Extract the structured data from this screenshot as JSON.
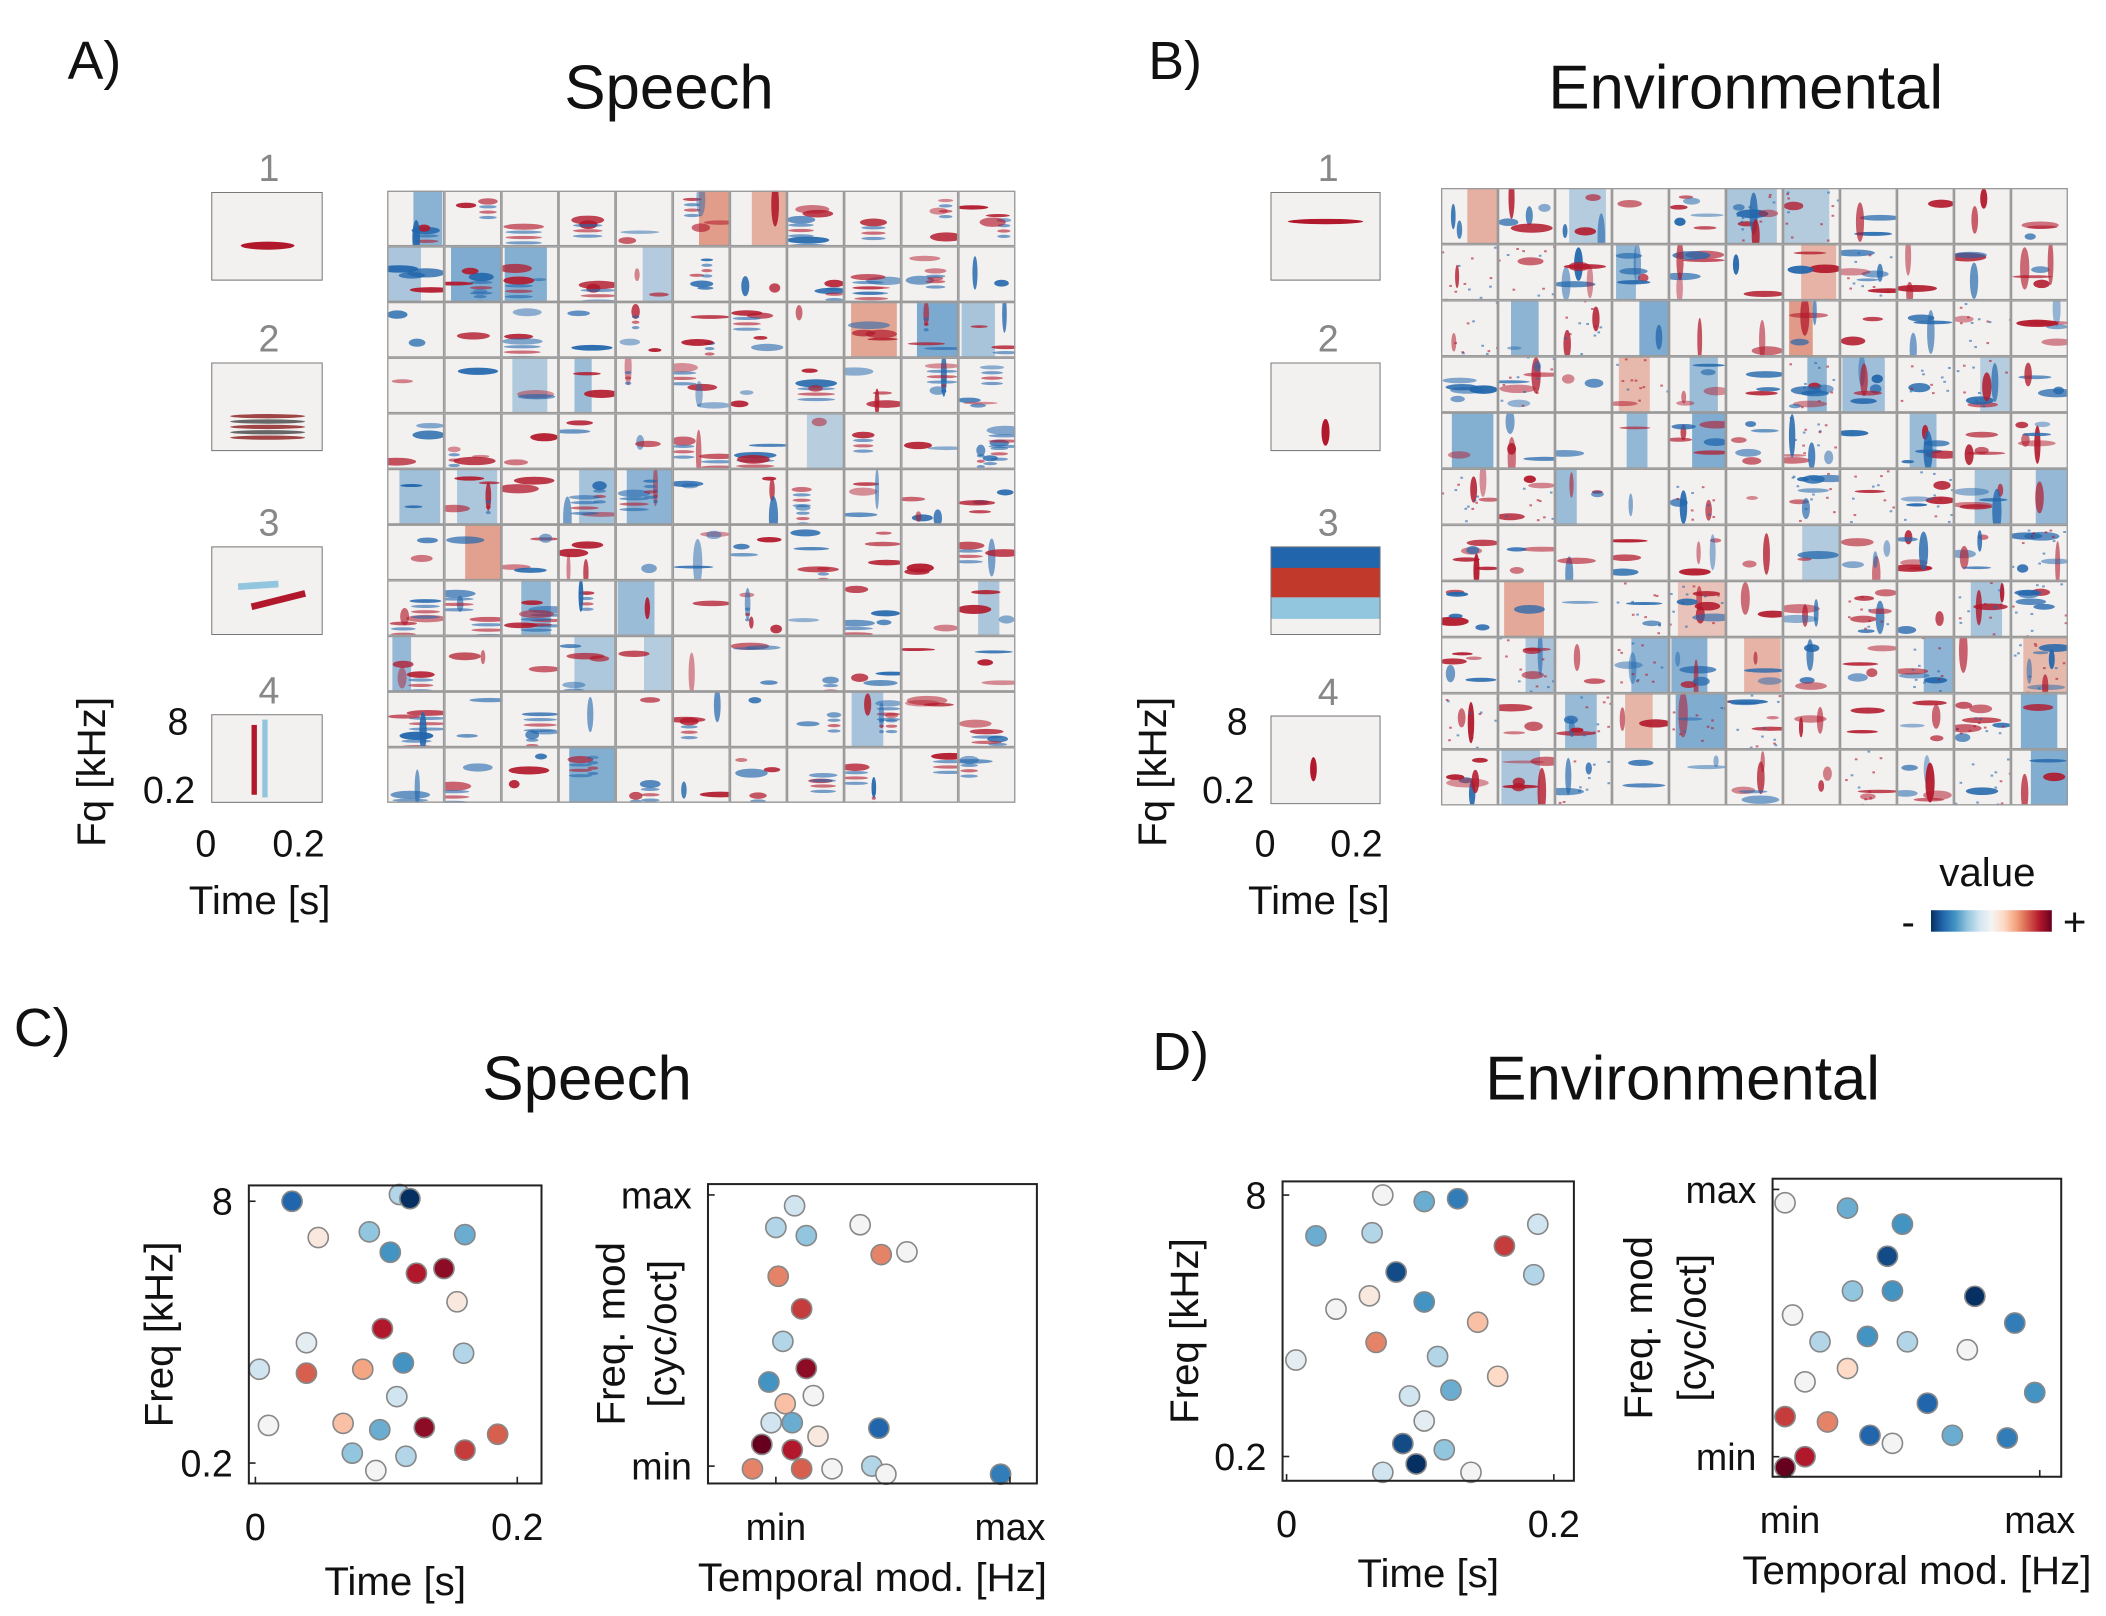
{
  "panels": [
    {
      "label": "A)",
      "title": "Speech"
    },
    {
      "label": "B)",
      "title": "Environmental"
    },
    {
      "label": "C)",
      "title": "Speech"
    },
    {
      "label": "D)",
      "title": "Environmental"
    }
  ],
  "filters": [
    {
      "examples": [
        "1",
        "2",
        "3",
        "4"
      ],
      "ylabel": "Fq [kHz]",
      "xlabel": "Time [s]",
      "yticks": [
        8,
        0.2
      ],
      "xticks": [
        0,
        0.2
      ]
    },
    {
      "examples": [
        "1",
        "2",
        "3",
        "4"
      ],
      "ylabel": "Fq [kHz]",
      "xlabel": "Time [s]",
      "yticks": [
        8,
        0.2
      ],
      "xticks": [
        0,
        0.2
      ]
    }
  ],
  "colorbar": {
    "label": "value",
    "min_label": "-",
    "max_label": "+",
    "clim": [
      -1,
      1
    ],
    "colormap": [
      "#053061",
      "#2166ac",
      "#4393c3",
      "#92c5de",
      "#d1e5f0",
      "#f4f4f4",
      "#fddbc7",
      "#f4a582",
      "#d6604d",
      "#b2182b",
      "#67001f"
    ]
  },
  "chart_data": [
    {
      "type": "scatter",
      "xlabel": "Time [s]",
      "ylabel": [
        "Freq [kHz]"
      ],
      "ylog": true,
      "xlim": [
        -0.005,
        0.2185
      ],
      "ylim": [
        0.15,
        10
      ],
      "xticks": [
        0,
        0.2
      ],
      "yticks": [
        8,
        0.2
      ],
      "x": [
        0.028,
        0.11,
        0.118,
        0.144,
        0.16,
        0.048,
        0.087,
        0.103,
        0.154,
        0.159,
        0.123,
        0.039,
        0.003,
        0.039,
        0.082,
        0.113,
        0.01,
        0.067,
        0.095,
        0.129,
        0.185,
        0.16,
        0.074,
        0.092,
        0.115,
        0.097,
        0.108
      ],
      "y": [
        8.0,
        8.8,
        8.3,
        3.1,
        5.0,
        4.8,
        5.2,
        3.9,
        1.94,
        0.94,
        2.9,
        1.09,
        0.75,
        0.71,
        0.75,
        0.82,
        0.34,
        0.35,
        0.32,
        0.33,
        0.3,
        0.24,
        0.23,
        0.18,
        0.22,
        1.33,
        0.51
      ],
      "c": [
        -0.8,
        -0.3,
        -1.0,
        0.9,
        -0.5,
        0.1,
        -0.4,
        -0.6,
        0.1,
        -0.3,
        0.8,
        -0.1,
        -0.2,
        0.6,
        0.4,
        -0.6,
        0.0,
        0.3,
        -0.5,
        0.9,
        0.6,
        0.7,
        -0.4,
        0.0,
        -0.3,
        0.8,
        -0.2
      ]
    },
    {
      "type": "scatter",
      "xlabel": "Temporal mod. [Hz]",
      "ylabel": [
        "Freq. mod",
        "[cyc/oct]"
      ],
      "ylog": false,
      "xlim": [
        -0.29,
        1.115
      ],
      "ylim": [
        -0.064,
        1.04
      ],
      "xticks": [
        {
          "value": 0,
          "label": "min"
        },
        {
          "value": 1,
          "label": "max"
        }
      ],
      "yticks": [
        {
          "value": 1,
          "label": "max"
        },
        {
          "value": 0,
          "label": "min"
        }
      ],
      "x": [
        0.08,
        0.0,
        0.36,
        0.45,
        0.56,
        0.13,
        0.01,
        0.11,
        0.03,
        0.13,
        -0.03,
        0.04,
        0.44,
        -0.06,
        0.07,
        0.18,
        0.41,
        0.47,
        0.96,
        0.11,
        0.24,
        -0.1,
        -0.02,
        0.16,
        0.07
      ],
      "y": [
        0.96,
        0.88,
        0.89,
        0.78,
        0.79,
        0.85,
        0.7,
        0.58,
        0.46,
        0.36,
        0.31,
        0.23,
        0.14,
        0.08,
        0.06,
        0.11,
        0.0,
        -0.03,
        -0.03,
        -0.01,
        -0.01,
        -0.01,
        0.16,
        0.26,
        0.16
      ],
      "c": [
        -0.2,
        -0.3,
        0.0,
        0.5,
        0.0,
        -0.4,
        0.5,
        0.7,
        -0.3,
        0.9,
        -0.6,
        0.3,
        -0.8,
        1.0,
        0.8,
        0.1,
        -0.3,
        0.0,
        -0.7,
        0.6,
        0.0,
        0.5,
        -0.2,
        0.0,
        -0.5
      ]
    },
    {
      "type": "scatter",
      "xlabel": "Time [s]",
      "ylabel": [
        "Freq [kHz]"
      ],
      "ylog": true,
      "xlim": [
        -0.003,
        0.215
      ],
      "ylim": [
        0.142,
        9.7
      ],
      "xticks": [
        0,
        0.2
      ],
      "yticks": [
        8,
        0.2
      ],
      "x": [
        0.072,
        0.103,
        0.128,
        0.022,
        0.064,
        0.188,
        0.163,
        0.082,
        0.185,
        0.037,
        0.062,
        0.103,
        0.143,
        0.067,
        0.007,
        0.158,
        0.092,
        0.123,
        0.103,
        0.087,
        0.118,
        0.072,
        0.138,
        0.097,
        0.113
      ],
      "y": [
        8.0,
        7.3,
        7.6,
        4.5,
        4.7,
        5.3,
        3.9,
        2.7,
        2.6,
        1.6,
        1.93,
        1.77,
        1.33,
        1.0,
        0.78,
        0.62,
        0.47,
        0.51,
        0.33,
        0.24,
        0.22,
        0.16,
        0.16,
        0.18,
        0.82
      ],
      "c": [
        0.0,
        -0.5,
        -0.7,
        -0.5,
        -0.3,
        -0.2,
        0.7,
        -0.9,
        -0.3,
        0.0,
        0.1,
        -0.6,
        0.3,
        0.5,
        -0.1,
        0.2,
        -0.2,
        -0.5,
        -0.1,
        -0.9,
        -0.4,
        -0.2,
        0.0,
        -1.0,
        -0.3
      ]
    },
    {
      "type": "scatter",
      "xlabel": "Temporal mod. [Hz]",
      "ylabel": [
        "Freq. mod",
        "[cyc/oct]"
      ],
      "ylog": false,
      "xlim": [
        -0.07,
        1.086
      ],
      "ylim": [
        -0.075,
        1.04
      ],
      "xticks": [
        {
          "value": 0,
          "label": "min"
        },
        {
          "value": 1,
          "label": "max"
        }
      ],
      "yticks": [
        {
          "value": 1,
          "label": "max"
        },
        {
          "value": 0,
          "label": "min"
        }
      ],
      "x": [
        -0.02,
        0.23,
        0.45,
        0.39,
        0.41,
        0.74,
        0.25,
        0.9,
        0.01,
        0.12,
        0.31,
        0.47,
        0.71,
        0.98,
        0.23,
        0.06,
        -0.02,
        0.15,
        0.32,
        0.41,
        0.65,
        0.87,
        -0.02,
        0.06,
        0.55
      ],
      "y": [
        0.95,
        0.93,
        0.87,
        0.75,
        0.62,
        0.6,
        0.62,
        0.5,
        0.53,
        0.43,
        0.45,
        0.43,
        0.4,
        0.24,
        0.33,
        0.28,
        0.15,
        0.13,
        0.08,
        0.05,
        0.08,
        0.07,
        -0.04,
        0.0,
        0.2
      ],
      "c": [
        0.0,
        -0.5,
        -0.6,
        -0.9,
        -0.6,
        -1.0,
        -0.4,
        -0.7,
        0.0,
        -0.3,
        -0.6,
        -0.3,
        0.0,
        -0.6,
        0.2,
        0.0,
        0.7,
        0.5,
        -0.8,
        0.0,
        -0.5,
        -0.7,
        1.0,
        0.8,
        -0.8
      ]
    }
  ]
}
